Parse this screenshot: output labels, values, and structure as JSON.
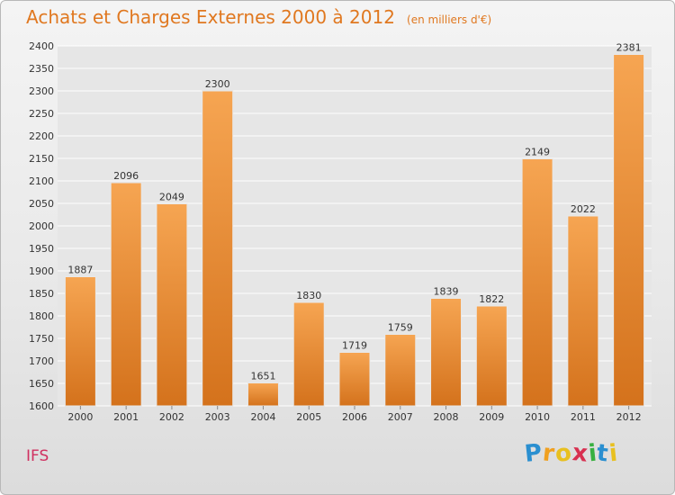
{
  "chart_data": {
    "type": "bar",
    "title": "Achats et Charges Externes 2000 à 2012",
    "subtitle": "(en milliers d'€)",
    "categories": [
      "2000",
      "2001",
      "2002",
      "2003",
      "2004",
      "2005",
      "2006",
      "2007",
      "2008",
      "2009",
      "2010",
      "2011",
      "2012"
    ],
    "values": [
      1887,
      2096,
      2049,
      2300,
      1651,
      1830,
      1719,
      1759,
      1839,
      1822,
      2149,
      2022,
      2381
    ],
    "ylim": [
      1600,
      2400
    ],
    "yticks": [
      1600,
      1650,
      1700,
      1750,
      1800,
      1850,
      1900,
      1950,
      2000,
      2050,
      2100,
      2150,
      2200,
      2250,
      2300,
      2350,
      2400
    ],
    "grid": true,
    "bar_color_top": "#f6a552",
    "bar_color_bottom": "#d4721c"
  },
  "place": "IFS",
  "brand": {
    "letters": [
      "P",
      "r",
      "o",
      "x",
      "i",
      "t",
      "i"
    ],
    "colors": [
      "#2a8fd0",
      "#f0a020",
      "#e8c020",
      "#d83050",
      "#38b040",
      "#2a8fd0",
      "#e8c020"
    ]
  }
}
